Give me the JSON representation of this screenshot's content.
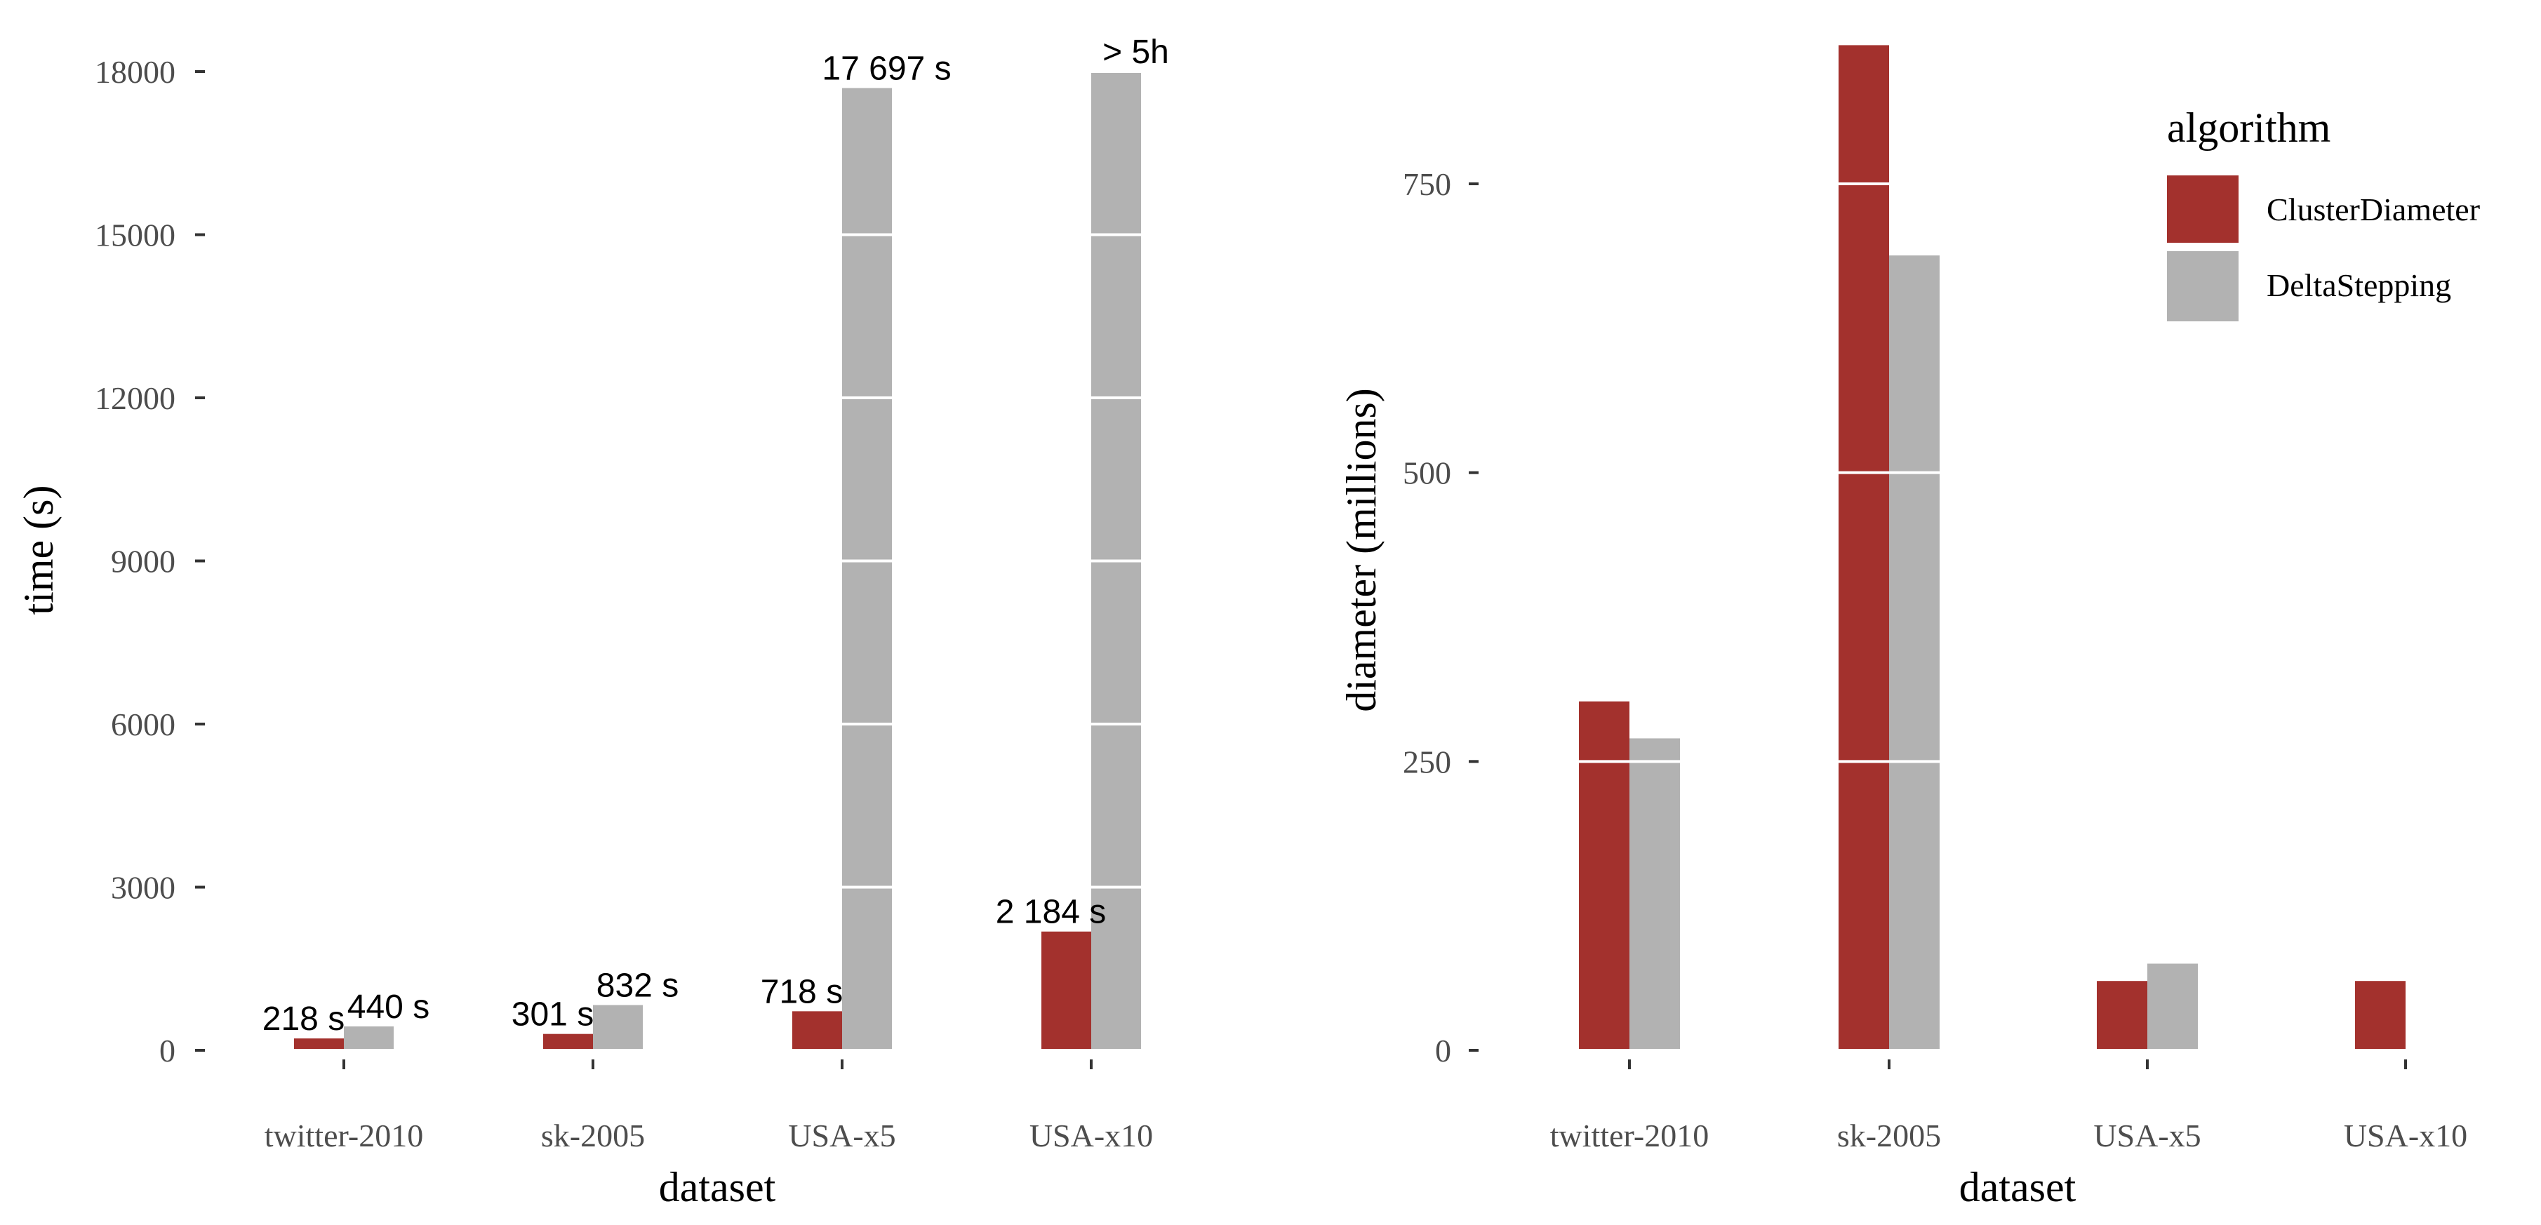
{
  "colors": {
    "ClusterDiameter": "#a3312d",
    "DeltaStepping": "#b2b2b2",
    "grid": "#ffffff",
    "tick": "#333333",
    "tick_text": "#4d4d4d"
  },
  "legend": {
    "title": "algorithm",
    "position": "top-right",
    "items": [
      {
        "label": "ClusterDiameter",
        "color": "#a3312d"
      },
      {
        "label": "DeltaStepping",
        "color": "#b2b2b2"
      }
    ]
  },
  "chart_data": [
    {
      "type": "bar",
      "xlabel": "dataset",
      "ylabel": "time (s)",
      "categories": [
        "twitter-2010",
        "sk-2005",
        "USA-x5",
        "USA-x10"
      ],
      "ylim": [
        0,
        18000
      ],
      "yticks": [
        "0",
        "3000",
        "6000",
        "9000",
        "12000",
        "15000",
        "18000"
      ],
      "ytick_values": [
        0,
        3000,
        6000,
        9000,
        12000,
        15000,
        18000
      ],
      "grid": true,
      "series": [
        {
          "name": "ClusterDiameter",
          "values": [
            218,
            301,
            718,
            2184
          ],
          "labels": [
            "218 s",
            "301 s",
            "718 s",
            "2 184 s"
          ]
        },
        {
          "name": "DeltaStepping",
          "values": [
            440,
            832,
            17697,
            18000
          ],
          "labels": [
            "440 s",
            "832 s",
            "17 697 s",
            "> 5h"
          ]
        }
      ]
    },
    {
      "type": "bar",
      "xlabel": "dataset",
      "ylabel": "diameter (millions)",
      "categories": [
        "twitter-2010",
        "sk-2005",
        "USA-x5",
        "USA-x10"
      ],
      "ylim": [
        0,
        750
      ],
      "yticks": [
        "0",
        "250",
        "500",
        "750"
      ],
      "ytick_values": [
        0,
        250,
        500,
        750
      ],
      "grid": true,
      "series": [
        {
          "name": "ClusterDiameter",
          "values": [
            302,
            870,
            60,
            60
          ]
        },
        {
          "name": "DeltaStepping",
          "values": [
            270,
            688,
            75,
            null
          ]
        }
      ]
    }
  ]
}
